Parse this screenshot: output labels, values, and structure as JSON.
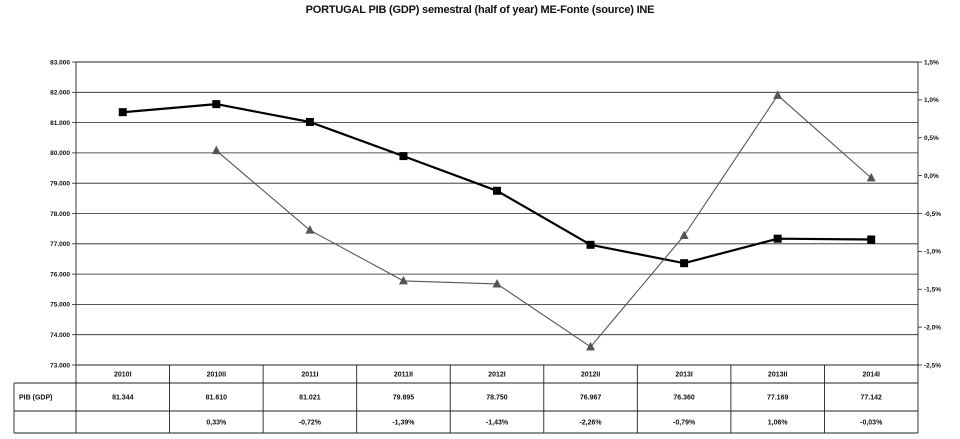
{
  "chart_data": {
    "type": "line",
    "title": "PORTUGAL PIB (GDP) semestral (half of year) ME-Fonte (source) INE",
    "categories": [
      "2010I",
      "2010II",
      "2011I",
      "2011II",
      "2012I",
      "2012II",
      "2013I",
      "2013II",
      "2014I"
    ],
    "series": [
      {
        "name": "PIB (GDP)",
        "axis": "left",
        "marker": "square",
        "color": "#000000",
        "values": [
          81344,
          81610,
          81021,
          79895,
          78750,
          76967,
          76360,
          77169,
          77142
        ]
      },
      {
        "name": "",
        "axis": "right",
        "marker": "triangle",
        "color": "#555555",
        "values": [
          null,
          0.33,
          -0.72,
          -1.39,
          -1.43,
          -2.26,
          -0.79,
          1.06,
          -0.03
        ]
      }
    ],
    "left_axis": {
      "min": 73000,
      "max": 83000,
      "step": 1000,
      "tick_labels": [
        "73.000",
        "74.000",
        "75.000",
        "76.000",
        "77.000",
        "78.000",
        "79.000",
        "80.000",
        "81.000",
        "82.000",
        "83.000"
      ]
    },
    "right_axis": {
      "min": -2.5,
      "max": 1.5,
      "step": 0.5,
      "tick_labels": [
        "-2,5%",
        "-2,0%",
        "-1,5%",
        "-1,0%",
        "-0,5%",
        "0,0%",
        "0,5%",
        "1,0%",
        "1,5%"
      ]
    },
    "grid": true,
    "legend": "none",
    "table": {
      "row_label": "PIB (GDP)",
      "gdp_row": [
        "81.344",
        "81.610",
        "81.021",
        "79.895",
        "78.750",
        "76.967",
        "76.360",
        "77.169",
        "77.142"
      ],
      "change_row": [
        "",
        "0,33%",
        "-0,72%",
        "-1,39%",
        "-1,43%",
        "-2,26%",
        "-0,79%",
        "1,06%",
        "-0,03%"
      ]
    }
  }
}
